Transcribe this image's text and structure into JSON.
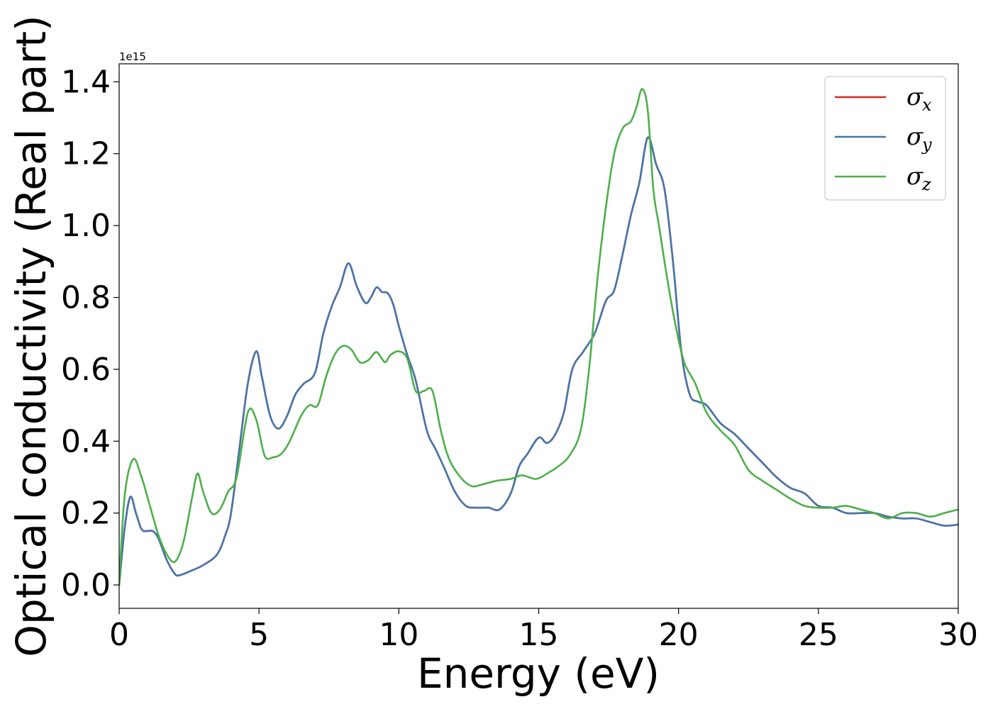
{
  "chart_data": {
    "type": "line",
    "xlabel": "Energy (eV)",
    "ylabel": "Optical conductivity (Real part)",
    "y_offset_label": "1e15",
    "xlim": [
      0,
      30
    ],
    "ylim": [
      -0.065,
      1.45
    ],
    "grid": false,
    "legend_position": "top-right",
    "x_ticks": [
      0,
      5,
      10,
      15,
      20,
      25,
      30
    ],
    "x_tick_labels": [
      "0",
      "5",
      "10",
      "15",
      "20",
      "25",
      "30"
    ],
    "y_ticks": [
      0.0,
      0.2,
      0.4,
      0.6,
      0.8,
      1.0,
      1.2,
      1.4
    ],
    "y_tick_labels": [
      "0.0",
      "0.2",
      "0.4",
      "0.6",
      "0.8",
      "1.0",
      "1.2",
      "1.4"
    ],
    "series": [
      {
        "name": "σx",
        "legend_symbol": "σ",
        "legend_sub": "x",
        "color": "#d62728",
        "x": [
          0,
          0.2,
          0.4,
          0.6,
          0.8,
          1.0,
          1.2,
          1.4,
          1.7,
          2.0,
          2.2,
          2.5,
          3.0,
          3.5,
          3.8,
          4.0,
          4.3,
          4.6,
          4.9,
          5.1,
          5.4,
          5.7,
          6.0,
          6.3,
          6.6,
          7.0,
          7.3,
          7.6,
          7.9,
          8.2,
          8.5,
          8.8,
          9.0,
          9.2,
          9.4,
          9.6,
          9.8,
          10.0,
          10.3,
          10.6,
          11.0,
          11.3,
          11.6,
          12.0,
          12.4,
          12.8,
          13.2,
          13.6,
          14.0,
          14.3,
          14.6,
          15.0,
          15.3,
          15.6,
          15.9,
          16.2,
          16.6,
          17.0,
          17.4,
          17.7,
          18.0,
          18.3,
          18.6,
          18.9,
          19.2,
          19.5,
          19.8,
          20.1,
          20.4,
          20.7,
          21.0,
          21.5,
          22.0,
          22.5,
          23.0,
          23.5,
          24.0,
          24.5,
          25.0,
          25.5,
          26.0,
          26.5,
          27.0,
          27.5,
          28.0,
          28.5,
          29.0,
          29.5,
          30.0
        ],
        "y": [
          0.0,
          0.16,
          0.245,
          0.2,
          0.155,
          0.15,
          0.15,
          0.13,
          0.07,
          0.03,
          0.028,
          0.037,
          0.055,
          0.085,
          0.14,
          0.2,
          0.38,
          0.56,
          0.65,
          0.58,
          0.47,
          0.435,
          0.47,
          0.53,
          0.56,
          0.59,
          0.7,
          0.775,
          0.83,
          0.895,
          0.83,
          0.785,
          0.8,
          0.828,
          0.815,
          0.812,
          0.78,
          0.72,
          0.64,
          0.57,
          0.43,
          0.38,
          0.33,
          0.26,
          0.22,
          0.215,
          0.215,
          0.21,
          0.255,
          0.33,
          0.365,
          0.41,
          0.395,
          0.42,
          0.48,
          0.6,
          0.65,
          0.7,
          0.79,
          0.82,
          0.92,
          1.03,
          1.12,
          1.245,
          1.17,
          1.1,
          0.9,
          0.65,
          0.53,
          0.51,
          0.5,
          0.45,
          0.42,
          0.38,
          0.34,
          0.3,
          0.27,
          0.255,
          0.22,
          0.215,
          0.2,
          0.2,
          0.2,
          0.19,
          0.185,
          0.185,
          0.175,
          0.165,
          0.168
        ]
      },
      {
        "name": "σy",
        "legend_symbol": "σ",
        "legend_sub": "y",
        "color": "#4477aa",
        "x": [
          0,
          0.2,
          0.4,
          0.6,
          0.8,
          1.0,
          1.2,
          1.4,
          1.7,
          2.0,
          2.2,
          2.5,
          3.0,
          3.5,
          3.8,
          4.0,
          4.3,
          4.6,
          4.9,
          5.1,
          5.4,
          5.7,
          6.0,
          6.3,
          6.6,
          7.0,
          7.3,
          7.6,
          7.9,
          8.2,
          8.5,
          8.8,
          9.0,
          9.2,
          9.4,
          9.6,
          9.8,
          10.0,
          10.3,
          10.6,
          11.0,
          11.3,
          11.6,
          12.0,
          12.4,
          12.8,
          13.2,
          13.6,
          14.0,
          14.3,
          14.6,
          15.0,
          15.3,
          15.6,
          15.9,
          16.2,
          16.6,
          17.0,
          17.4,
          17.7,
          18.0,
          18.3,
          18.6,
          18.9,
          19.2,
          19.5,
          19.8,
          20.1,
          20.4,
          20.7,
          21.0,
          21.5,
          22.0,
          22.5,
          23.0,
          23.5,
          24.0,
          24.5,
          25.0,
          25.5,
          26.0,
          26.5,
          27.0,
          27.5,
          28.0,
          28.5,
          29.0,
          29.5,
          30.0
        ],
        "y": [
          0.0,
          0.16,
          0.245,
          0.2,
          0.155,
          0.15,
          0.15,
          0.13,
          0.07,
          0.03,
          0.028,
          0.037,
          0.055,
          0.085,
          0.14,
          0.2,
          0.38,
          0.56,
          0.65,
          0.58,
          0.47,
          0.435,
          0.47,
          0.53,
          0.56,
          0.59,
          0.7,
          0.775,
          0.83,
          0.895,
          0.83,
          0.785,
          0.8,
          0.828,
          0.815,
          0.812,
          0.78,
          0.72,
          0.64,
          0.57,
          0.43,
          0.38,
          0.33,
          0.26,
          0.22,
          0.215,
          0.215,
          0.21,
          0.255,
          0.33,
          0.365,
          0.41,
          0.395,
          0.42,
          0.48,
          0.6,
          0.65,
          0.7,
          0.79,
          0.82,
          0.92,
          1.03,
          1.12,
          1.245,
          1.17,
          1.1,
          0.9,
          0.65,
          0.53,
          0.51,
          0.5,
          0.45,
          0.42,
          0.38,
          0.34,
          0.3,
          0.27,
          0.255,
          0.22,
          0.215,
          0.2,
          0.2,
          0.2,
          0.19,
          0.185,
          0.185,
          0.175,
          0.165,
          0.168
        ]
      },
      {
        "name": "σz",
        "legend_symbol": "σ",
        "legend_sub": "z",
        "color": "#4daf4a",
        "x": [
          0,
          0.2,
          0.5,
          0.8,
          1.1,
          1.4,
          1.7,
          2.0,
          2.3,
          2.6,
          2.8,
          3.0,
          3.3,
          3.6,
          3.9,
          4.2,
          4.6,
          4.9,
          5.2,
          5.5,
          5.8,
          6.1,
          6.5,
          6.8,
          7.1,
          7.4,
          7.7,
          8.0,
          8.3,
          8.6,
          8.9,
          9.2,
          9.5,
          9.7,
          10.0,
          10.3,
          10.6,
          10.9,
          11.2,
          11.5,
          11.8,
          12.2,
          12.6,
          13.0,
          13.5,
          14.0,
          14.4,
          14.9,
          15.3,
          15.7,
          16.1,
          16.5,
          16.8,
          17.1,
          17.4,
          17.7,
          18.0,
          18.3,
          18.5,
          18.7,
          18.9,
          19.1,
          19.3,
          19.6,
          19.9,
          20.2,
          20.6,
          21.0,
          21.5,
          22.0,
          22.5,
          23.0,
          23.5,
          24.0,
          24.5,
          25.0,
          25.5,
          26.0,
          26.5,
          27.0,
          27.5,
          28.0,
          28.5,
          29.0,
          29.5,
          30.0
        ],
        "y": [
          0.0,
          0.25,
          0.35,
          0.3,
          0.22,
          0.14,
          0.085,
          0.065,
          0.12,
          0.24,
          0.31,
          0.26,
          0.2,
          0.21,
          0.26,
          0.3,
          0.48,
          0.46,
          0.36,
          0.355,
          0.365,
          0.4,
          0.47,
          0.5,
          0.5,
          0.58,
          0.64,
          0.665,
          0.655,
          0.62,
          0.625,
          0.648,
          0.62,
          0.64,
          0.65,
          0.63,
          0.54,
          0.54,
          0.54,
          0.43,
          0.35,
          0.3,
          0.275,
          0.28,
          0.29,
          0.295,
          0.305,
          0.295,
          0.31,
          0.33,
          0.36,
          0.43,
          0.6,
          0.85,
          1.05,
          1.2,
          1.27,
          1.29,
          1.33,
          1.38,
          1.32,
          1.1,
          1.0,
          0.85,
          0.72,
          0.62,
          0.56,
          0.48,
          0.43,
          0.39,
          0.32,
          0.29,
          0.265,
          0.24,
          0.22,
          0.215,
          0.215,
          0.22,
          0.21,
          0.2,
          0.185,
          0.2,
          0.2,
          0.19,
          0.2,
          0.21
        ]
      }
    ]
  }
}
